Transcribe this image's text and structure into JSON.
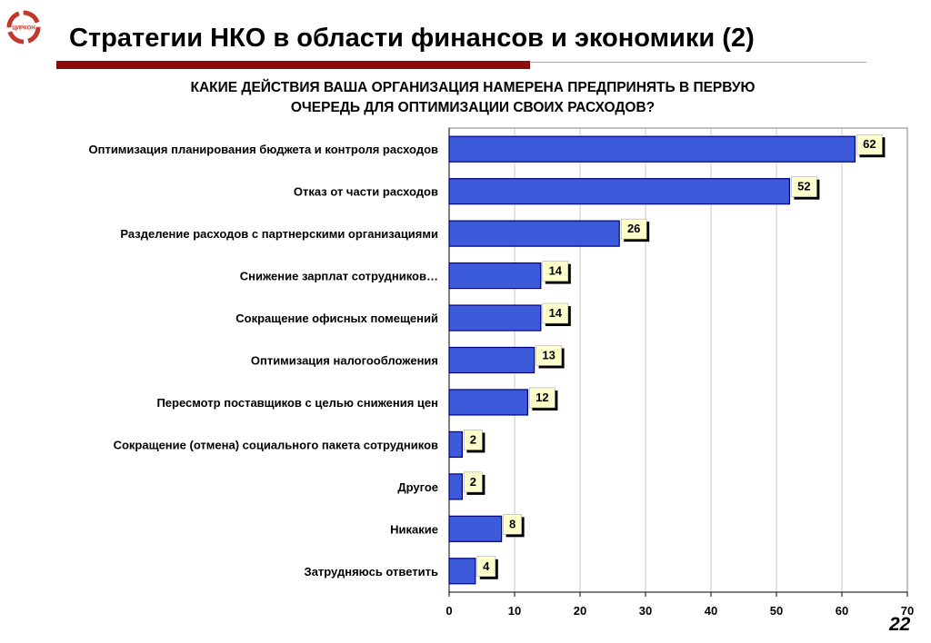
{
  "header": {
    "title": "Стратегии НКО в области финансов и экономики (2)",
    "logo_icon": "ring-arrows-logo-icon",
    "logo_text": "ЦИРКОН",
    "accent_color": "#8b0a0a"
  },
  "question": {
    "line1": "КАКИЕ ДЕЙСТВИЯ ВАША ОРГАНИЗАЦИЯ НАМЕРЕНА ПРЕДПРИНЯТЬ В ПЕРВУЮ",
    "line2": "ОЧЕРЕДЬ ДЛЯ ОПТИМИЗАЦИИ СВОИХ РАСХОДОВ?"
  },
  "chart_data": {
    "type": "bar",
    "orientation": "horizontal",
    "title": "",
    "xlabel": "",
    "ylabel": "",
    "categories": [
      "Оптимизация планирования бюджета и контроля расходов",
      "Отказ от части расходов",
      "Разделение расходов с партнерскими организациями",
      "Снижение зарплат сотрудников…",
      "Сокращение офисных помещений",
      "Оптимизация налогообложения",
      "Пересмотр поставщиков с целью снижения цен",
      "Сокращение (отмена) социального пакета сотрудников",
      "Другое",
      "Никакие",
      "Затрудняюсь ответить"
    ],
    "values": [
      62,
      52,
      26,
      14,
      14,
      13,
      12,
      2,
      2,
      8,
      4
    ],
    "xlim": [
      0,
      70
    ],
    "xticks": [
      0,
      10,
      20,
      30,
      40,
      50,
      60,
      70
    ],
    "grid": true,
    "legend": "none",
    "bar_color": "#3b5bdb",
    "bar_edge_color": "#000080",
    "label_box_color": "#ffffcc"
  },
  "footer": {
    "slide_number": "22"
  }
}
